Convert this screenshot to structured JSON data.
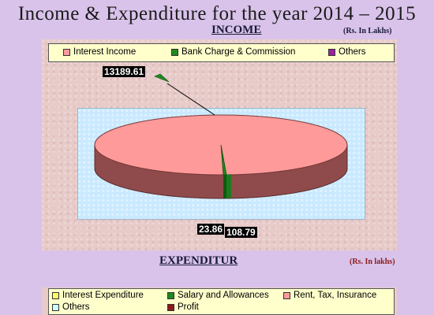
{
  "page_title": "Income & Expenditure for the year 2014 – 2015",
  "income": {
    "heading": "INCOME",
    "unit": "(Rs. In Lakhs)",
    "legend": [
      {
        "label": "Interest Income",
        "color": "#ff9a9a"
      },
      {
        "label": "Bank Charge & Commission",
        "color": "#1f8a1f"
      },
      {
        "label": "Others",
        "color": "#a020a0"
      }
    ],
    "data_labels": [
      "13189.61",
      "23.86",
      "108.79"
    ]
  },
  "expenditure": {
    "heading": "EXPENDITUR",
    "unit": "(Rs. In lakhs)",
    "legend": [
      {
        "label": "Interest Expenditure",
        "color": "#ffff66"
      },
      {
        "label": "Salary and Allowances",
        "color": "#1f8a1f"
      },
      {
        "label": "Rent, Tax, Insurance",
        "color": "#ff9a9a"
      },
      {
        "label": "Others",
        "color": "#ccffff"
      },
      {
        "label": "Profit",
        "color": "#8b1a1a"
      }
    ]
  },
  "chart_data": [
    {
      "type": "pie",
      "title": "INCOME",
      "categories": [
        "Interest Income",
        "Bank Charge & Commission",
        "Others"
      ],
      "values": [
        13189.61,
        23.86,
        108.79
      ],
      "colors": [
        "#ff9a9a",
        "#1f8a1f",
        "#a020a0"
      ],
      "legend_position": "top",
      "three_d": true
    }
  ]
}
